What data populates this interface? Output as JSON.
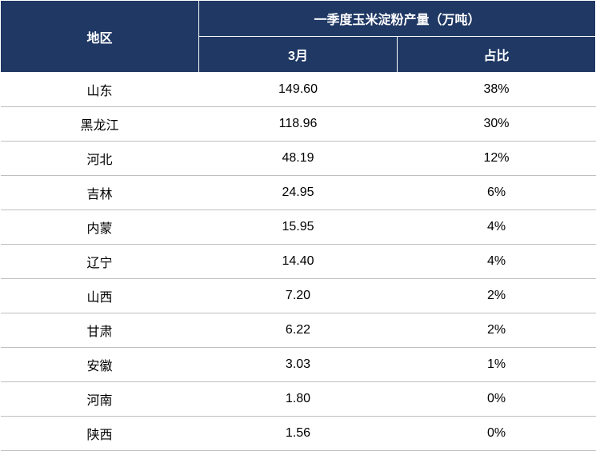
{
  "table": {
    "type": "table",
    "header": {
      "region_label": "地区",
      "main_header": "一季度玉米淀粉产量（万吨）",
      "sub_headers": [
        "3月",
        "占比"
      ]
    },
    "columns": [
      "region",
      "value",
      "percentage"
    ],
    "rows": [
      {
        "region": "山东",
        "value": "149.60",
        "percentage": "38%"
      },
      {
        "region": "黑龙江",
        "value": "118.96",
        "percentage": "30%"
      },
      {
        "region": "河北",
        "value": "48.19",
        "percentage": "12%"
      },
      {
        "region": "吉林",
        "value": "24.95",
        "percentage": "6%"
      },
      {
        "region": "内蒙",
        "value": "15.95",
        "percentage": "4%"
      },
      {
        "region": "辽宁",
        "value": "14.40",
        "percentage": "4%"
      },
      {
        "region": "山西",
        "value": "7.20",
        "percentage": "2%"
      },
      {
        "region": "甘肃",
        "value": "6.22",
        "percentage": "2%"
      },
      {
        "region": "安徽",
        "value": "3.03",
        "percentage": "1%"
      },
      {
        "region": "河南",
        "value": "1.80",
        "percentage": "0%"
      },
      {
        "region": "陕西",
        "value": "1.56",
        "percentage": "0%"
      }
    ],
    "styling": {
      "header_bg_color": "#1f3864",
      "header_text_color": "#ffffff",
      "header_border_color": "#ffffff",
      "row_border_color": "#bfbfbf",
      "cell_text_color": "#000000",
      "background_color": "#ffffff",
      "header_fontsize": 16,
      "cell_fontsize": 16,
      "header_font_weight": "bold",
      "column_widths": [
        "33.3%",
        "33.3%",
        "33.4%"
      ]
    }
  }
}
